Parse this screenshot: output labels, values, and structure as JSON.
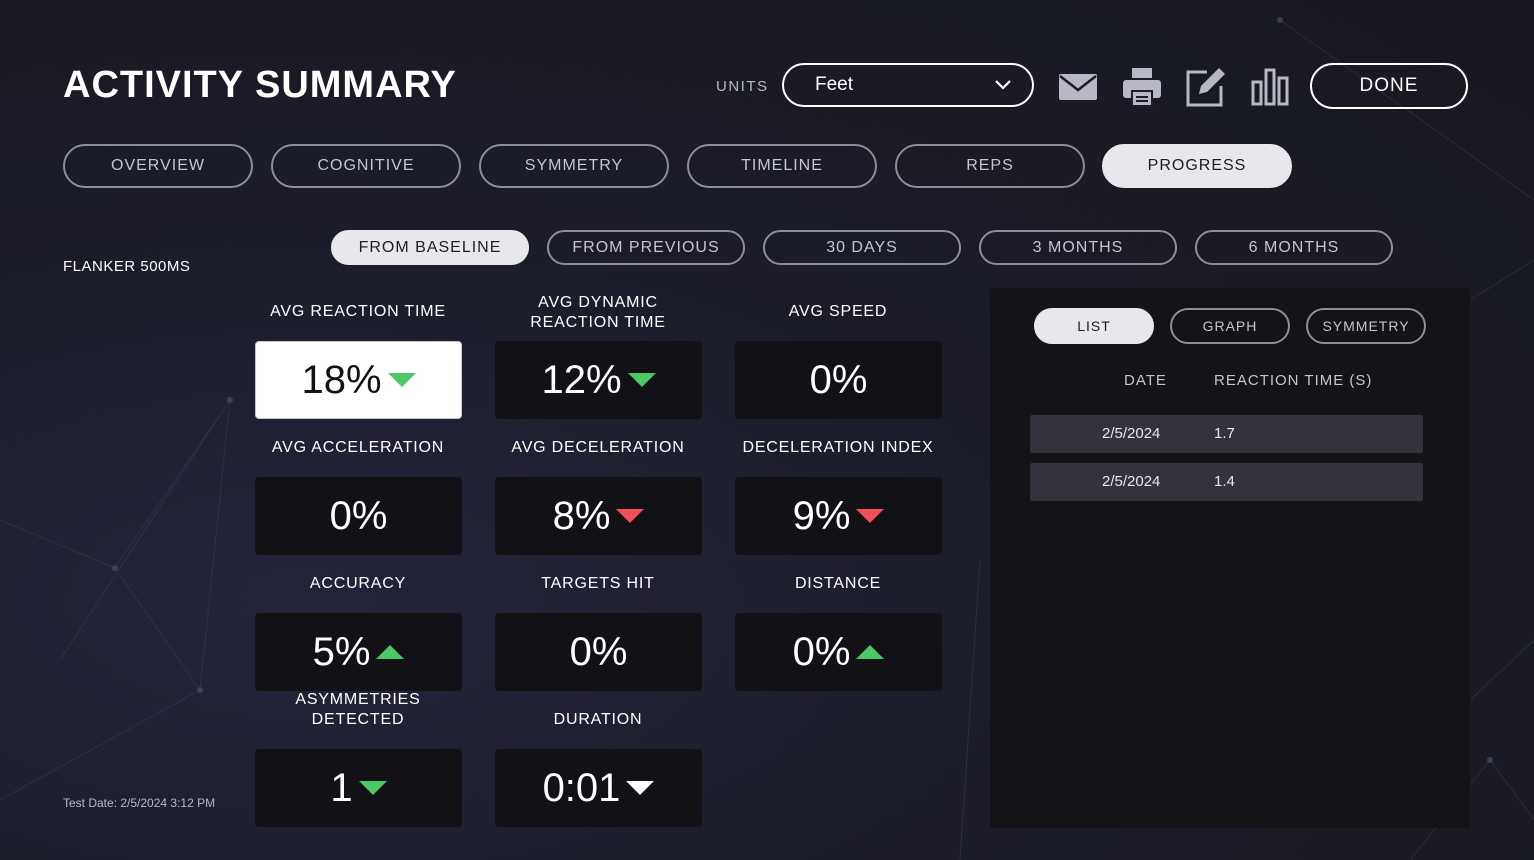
{
  "header": {
    "title": "ACTIVITY SUMMARY",
    "units_label": "UNITS",
    "units_value": "Feet",
    "done_label": "DONE",
    "icons": [
      "mail-icon",
      "print-icon",
      "edit-icon",
      "bar-chart-icon"
    ]
  },
  "tabs": [
    {
      "label": "OVERVIEW",
      "active": false
    },
    {
      "label": "COGNITIVE",
      "active": false
    },
    {
      "label": "SYMMETRY",
      "active": false
    },
    {
      "label": "TIMELINE",
      "active": false
    },
    {
      "label": "REPS",
      "active": false
    },
    {
      "label": "PROGRESS",
      "active": true
    }
  ],
  "subtabs": [
    {
      "label": "FROM BASELINE",
      "active": true
    },
    {
      "label": "FROM PREVIOUS",
      "active": false
    },
    {
      "label": "30 DAYS",
      "active": false
    },
    {
      "label": "3 MONTHS",
      "active": false
    },
    {
      "label": "6 MONTHS",
      "active": false
    }
  ],
  "activity_name": "FLANKER 500MS",
  "test_date": "Test Date: 2/5/2024 3:12 PM",
  "metrics": [
    {
      "label": "AVG REACTION TIME",
      "value": "18%",
      "arrow": "down-green",
      "selected": true
    },
    {
      "label": "AVG DYNAMIC\nREACTION TIME",
      "value": "12%",
      "arrow": "down-green"
    },
    {
      "label": "AVG SPEED",
      "value": "0%",
      "arrow": "none"
    },
    {
      "label": "AVG ACCELERATION",
      "value": "0%",
      "arrow": "none"
    },
    {
      "label": "AVG DECELERATION",
      "value": "8%",
      "arrow": "down-red"
    },
    {
      "label": "DECELERATION INDEX",
      "value": "9%",
      "arrow": "down-red"
    },
    {
      "label": "ACCURACY",
      "value": "5%",
      "arrow": "up-green"
    },
    {
      "label": "TARGETS HIT",
      "value": "0%",
      "arrow": "none"
    },
    {
      "label": "DISTANCE",
      "value": "0%",
      "arrow": "up-green"
    },
    {
      "label": "ASYMMETRIES\nDETECTED",
      "value": "1",
      "arrow": "down-green"
    },
    {
      "label": "DURATION",
      "value": "0:01",
      "arrow": "down-white"
    }
  ],
  "colors": {
    "arrow_green": "#4cc864",
    "arrow_red": "#f0505a",
    "arrow_white": "#ffffff"
  },
  "panel": {
    "tabs": [
      {
        "label": "LIST",
        "active": true
      },
      {
        "label": "GRAPH",
        "active": false
      },
      {
        "label": "SYMMETRY",
        "active": false
      }
    ],
    "columns": {
      "date": "DATE",
      "value": "REACTION TIME (S)"
    },
    "rows": [
      {
        "date": "2/5/2024",
        "value": "1.7"
      },
      {
        "date": "2/5/2024",
        "value": "1.4"
      }
    ]
  }
}
